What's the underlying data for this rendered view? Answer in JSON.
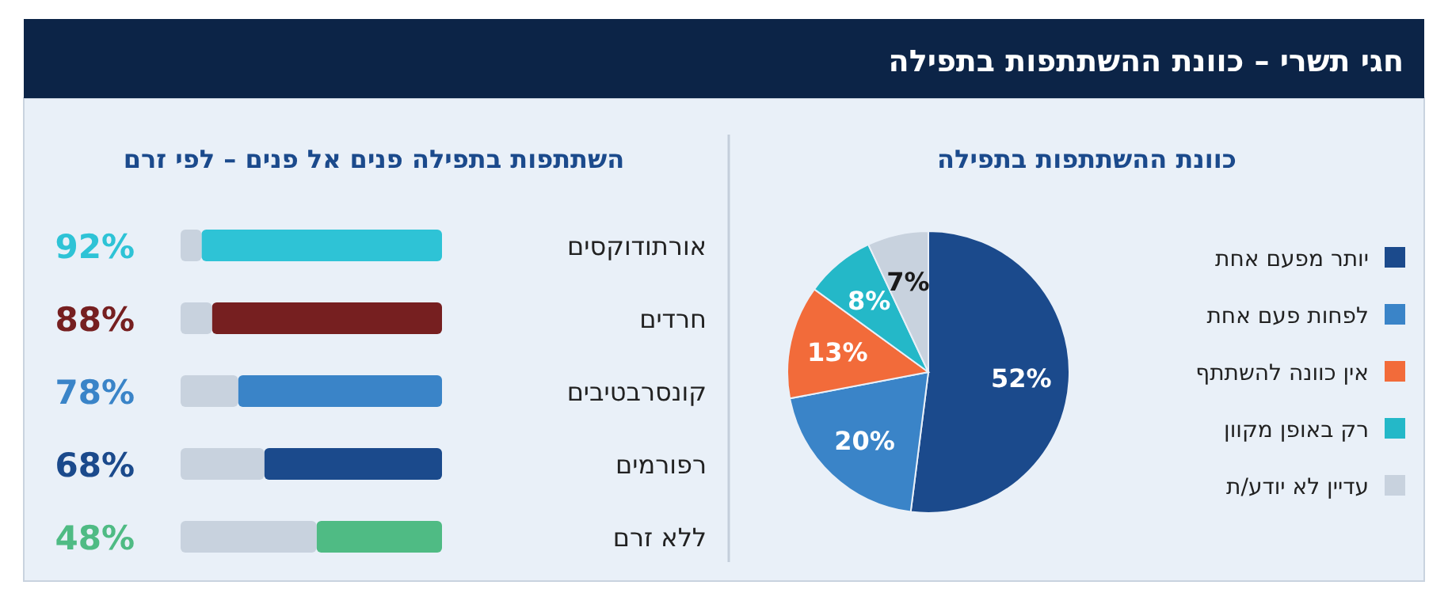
{
  "chart_data": [
    {
      "type": "other",
      "title": "חגי תשרי – כוונת ההשתתפות בתפילה"
    },
    {
      "type": "pie",
      "title": "כוונת ההשתתפות בתפילה",
      "categories": [
        "יותר מפעם אחת",
        "לפחות פעם אחת",
        "אין כוונה להשתתף",
        "רק באופן מקוון",
        "עדיין לא יודע/ת"
      ],
      "values": [
        52,
        20,
        13,
        8,
        7
      ],
      "colors": [
        "#1b4a8c",
        "#3a84c8",
        "#f26b3a",
        "#24b8c8",
        "#c8d2de"
      ],
      "value_labels": [
        "52%",
        "20%",
        "13%",
        "8%",
        "7%"
      ],
      "legend": "right"
    },
    {
      "type": "bar",
      "title": "השתתפות בתפילה פנים אל פנים – לפי זרם",
      "orientation": "horizontal",
      "stacked": true,
      "xlim": [
        100,
        0
      ],
      "tick_labels": "y",
      "categories": [
        "אורתודוקסים",
        "חרדים",
        "קונסרבטיבים",
        "רפורמים",
        "ללא זרם"
      ],
      "series": [
        {
          "colors": [
            "#2ec3d6",
            "#761f20",
            "#3a84c8",
            "#1b4a8c",
            "#4fbb84"
          ],
          "values": [
            92,
            88,
            78,
            68,
            48
          ],
          "value_labels": [
            "92%",
            "88%",
            "78%",
            "68%",
            "48%"
          ]
        },
        {
          "color": "#c8d2de",
          "values": [
            8,
            12,
            22,
            32,
            52
          ]
        }
      ]
    }
  ]
}
